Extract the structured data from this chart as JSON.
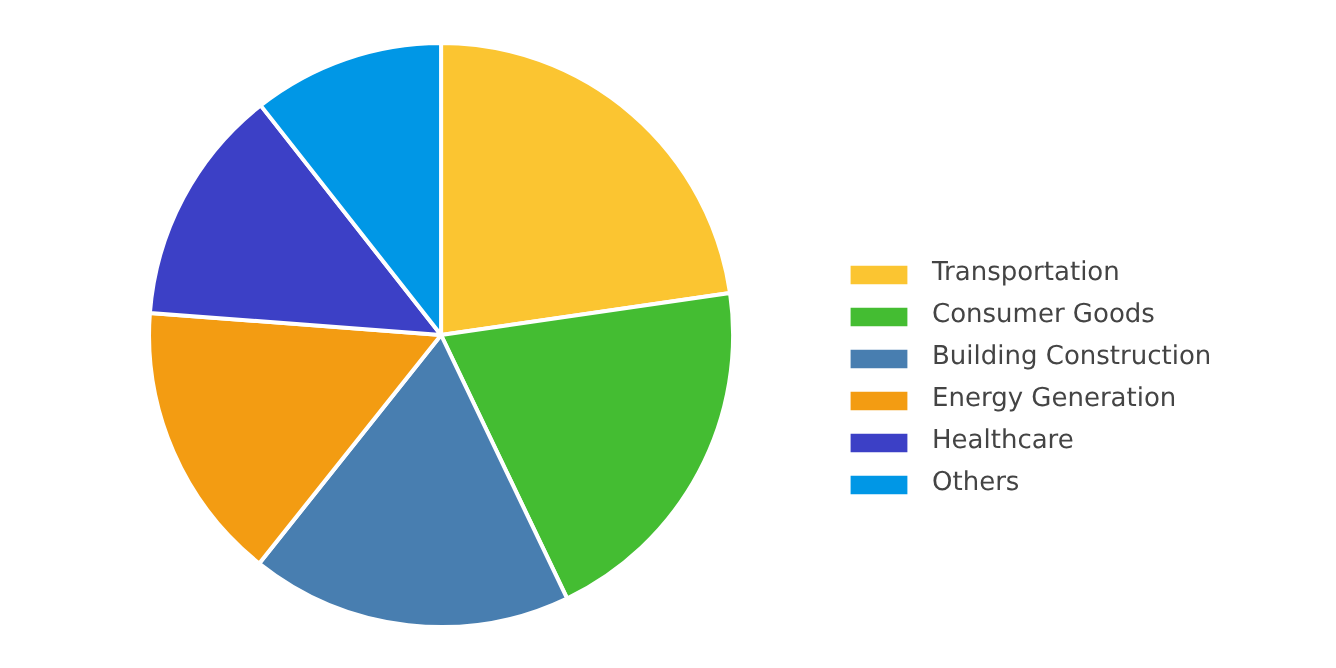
{
  "chart_data": {
    "type": "pie",
    "categories": [
      "Transportation",
      "Consumer Goods",
      "Building Construction",
      "Energy Generation",
      "Healthcare",
      "Others"
    ],
    "values": [
      22.7,
      20.2,
      17.8,
      15.5,
      13.2,
      10.6
    ],
    "colors": [
      "#fbc531",
      "#44bd32",
      "#487eb0",
      "#f39c12",
      "#3c40c6",
      "#0097e6"
    ],
    "legend": "right"
  }
}
